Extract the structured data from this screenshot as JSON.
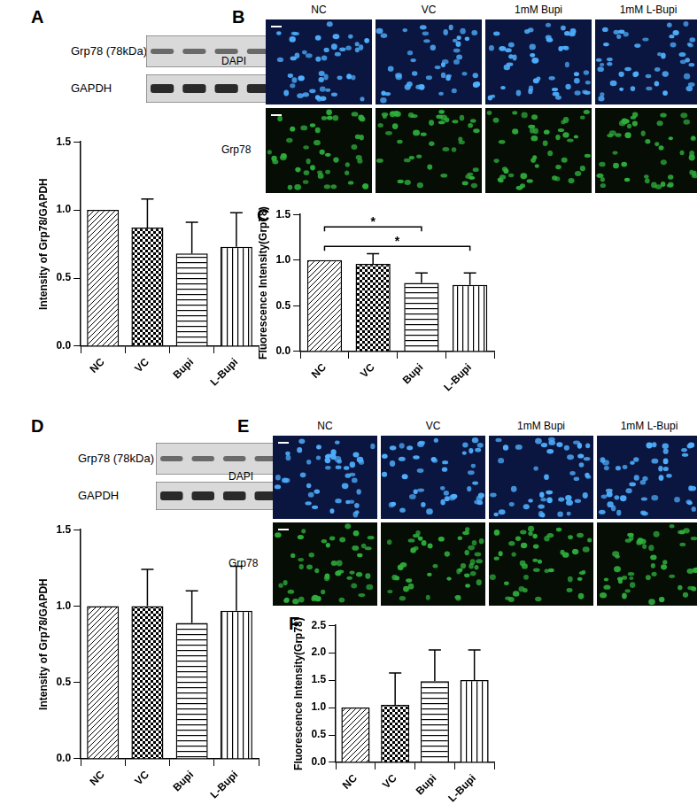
{
  "chart_data": [
    {
      "panel": "A",
      "type": "bar",
      "categories": [
        "NC",
        "VC",
        "Bupi",
        "L-Bupi"
      ],
      "values": [
        1.0,
        0.87,
        0.68,
        0.73
      ],
      "errors": [
        null,
        0.21,
        0.23,
        0.25
      ],
      "color": "#000000",
      "y_label": "Intensity of Grp78/GAPDH",
      "ylim": [
        0,
        1.5
      ],
      "yticks": [
        {
          "value": 0,
          "label": "0.0"
        },
        0.5,
        {
          "value": 1,
          "label": "1.0"
        },
        1.5
      ],
      "grid": false
    },
    {
      "panel": "C",
      "type": "bar",
      "categories": [
        "NC",
        "VC",
        "Bupi",
        "L-Bupi"
      ],
      "values": [
        1.0,
        0.96,
        0.75,
        0.73
      ],
      "errors": [
        null,
        0.11,
        0.11,
        0.13
      ],
      "color": "#000000",
      "y_label": "Fluorescence Intensity(Grp78)",
      "ylim": [
        0,
        1.5
      ],
      "yticks": [
        {
          "value": 0,
          "label": "0.0"
        },
        0.5,
        {
          "value": 1,
          "label": "1.0"
        },
        1.5
      ],
      "annotations": [
        {
          "from": "NC",
          "to": "Bupi",
          "text": "*"
        },
        {
          "from": "NC",
          "to": "L-Bupi",
          "text": "*"
        }
      ],
      "grid": false
    },
    {
      "panel": "D",
      "type": "bar",
      "categories": [
        "NC",
        "VC",
        "Bupi",
        "L-Bupi"
      ],
      "values": [
        1.0,
        1.0,
        0.89,
        0.97
      ],
      "errors": [
        null,
        0.24,
        0.21,
        0.29
      ],
      "color": "#000000",
      "y_label": "Intensity of Grp78/GAPDH",
      "ylim": [
        0,
        1.5
      ],
      "yticks": [
        {
          "value": 0,
          "label": "0.0"
        },
        0.5,
        {
          "value": 1,
          "label": "1.0"
        },
        1.5
      ],
      "grid": false
    },
    {
      "panel": "F",
      "type": "bar",
      "categories": [
        "NC",
        "VC",
        "Bupi",
        "L-Bupi"
      ],
      "values": [
        1.0,
        1.05,
        1.48,
        1.5
      ],
      "errors": [
        null,
        0.58,
        0.57,
        0.55
      ],
      "color": "#000000",
      "y_label": "Fluorescence Intensity(Grp78)",
      "ylim": [
        0,
        2.5
      ],
      "yticks": [
        {
          "value": 0,
          "label": "0.0"
        },
        0.5,
        {
          "value": 1,
          "label": "1.0"
        },
        1.5,
        {
          "value": 2,
          "label": "2.0"
        },
        2.5
      ],
      "grid": false
    }
  ],
  "blots": [
    {
      "panel": "A",
      "rows": [
        "Grp78 (78kDa)",
        "GAPDH"
      ]
    },
    {
      "panel": "D",
      "rows": [
        "Grp78 (78kDa)",
        "GAPDH"
      ]
    }
  ],
  "micrographs": [
    {
      "panel": "B",
      "columns": [
        "NC",
        "VC",
        "1mM Bupi",
        "1mM L-Bupi"
      ],
      "rows": [
        "DAPI",
        "Grp78"
      ]
    },
    {
      "panel": "E",
      "columns": [
        "NC",
        "VC",
        "1mM Bupi",
        "1mM L-Bupi"
      ],
      "rows": [
        "DAPI",
        "Grp78"
      ]
    }
  ]
}
